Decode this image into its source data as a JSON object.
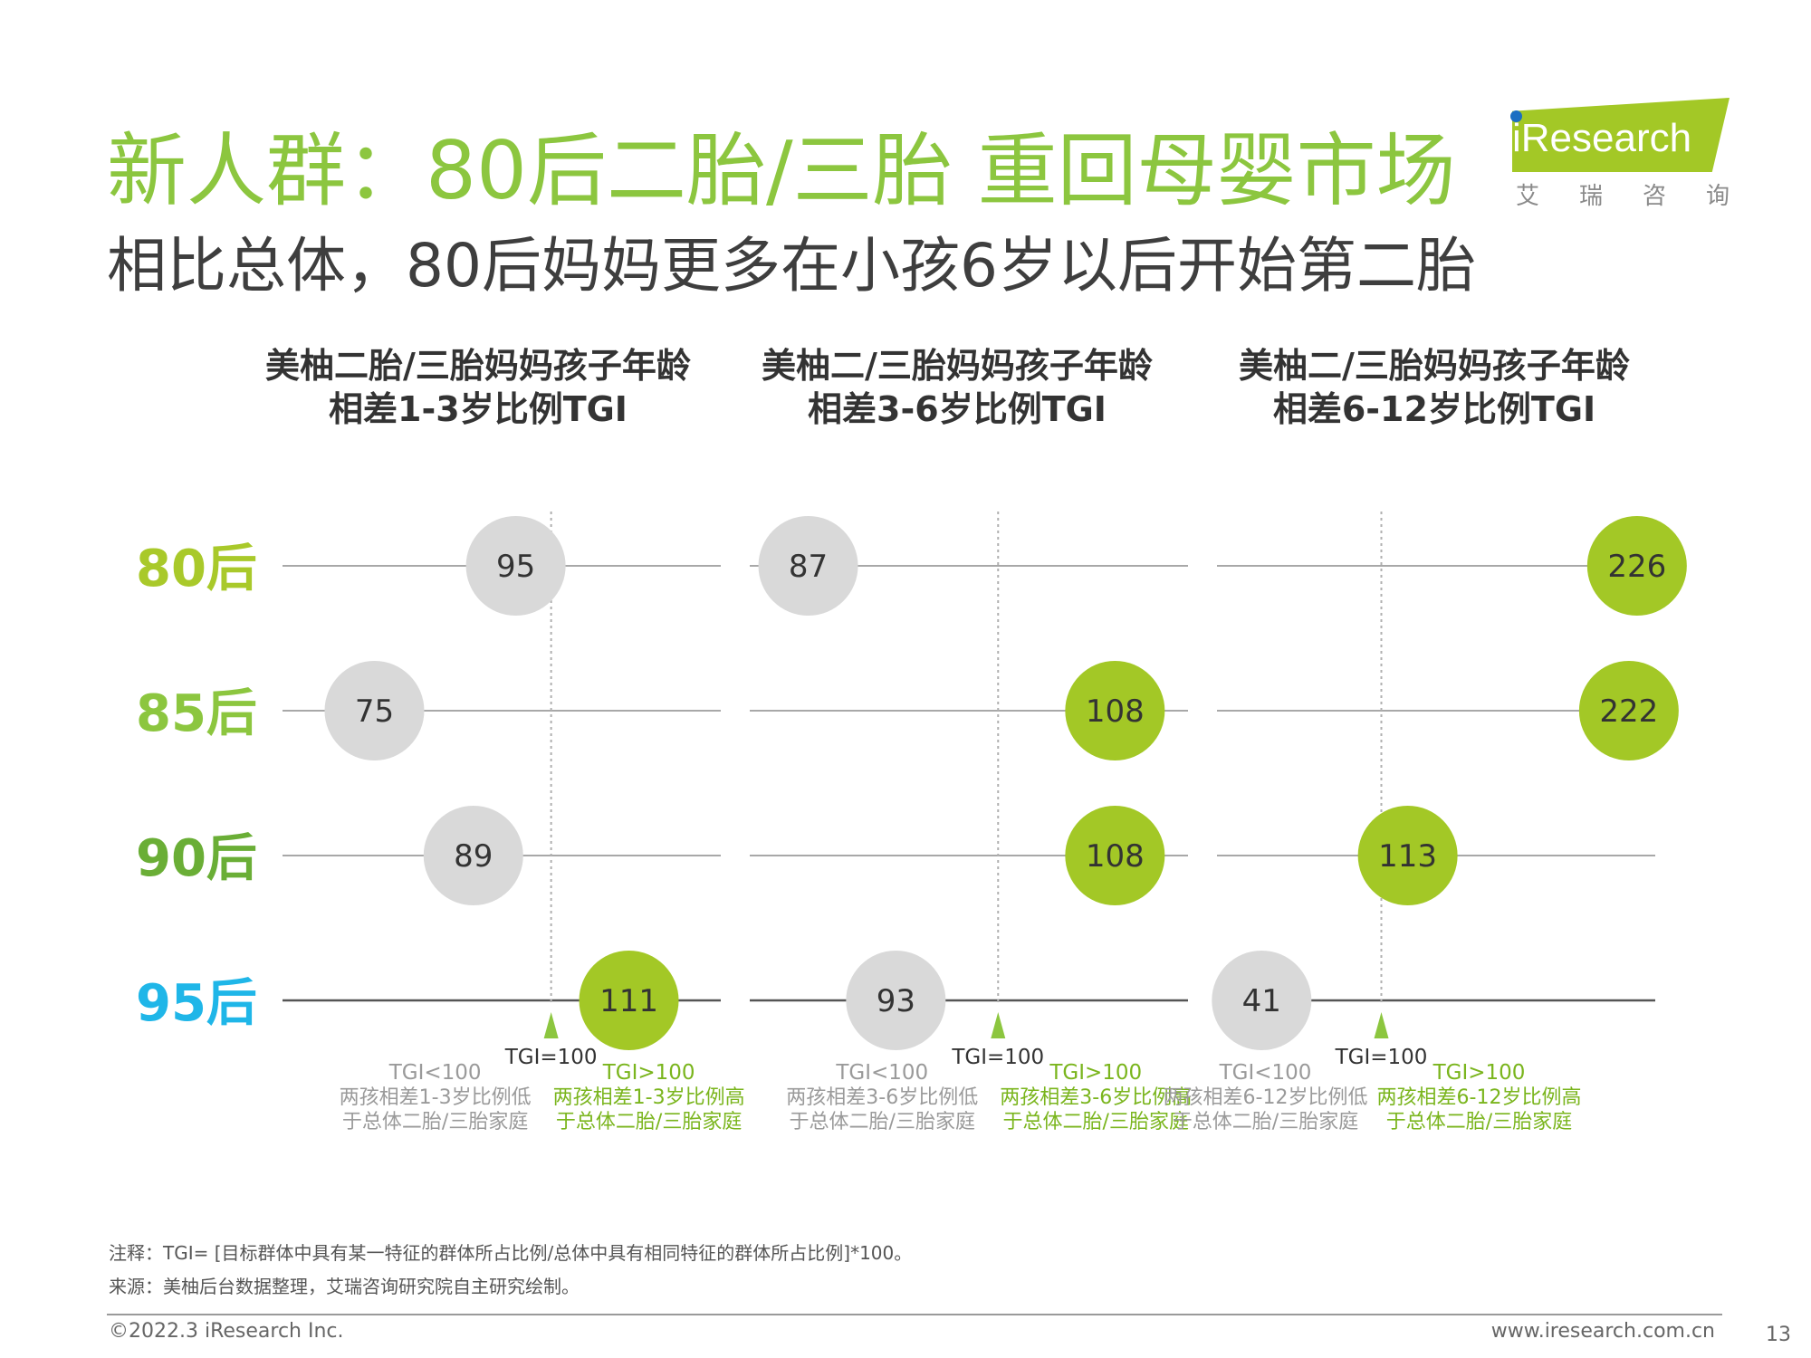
{
  "title": "新人群：80后二胎/三胎 重回母婴市场",
  "subtitle": "相比总体，80后妈妈更多在小孩6岁以后开始第二胎",
  "logo": {
    "wordmark": "iResearch",
    "cn": "艾瑞咨询",
    "colors": {
      "banner": "#a3c826",
      "dot": "#1b6fc2"
    }
  },
  "colors": {
    "above": "#a3c826",
    "below": "#d9d9d9",
    "title": "#8cc63f",
    "label_green": "#7ab51d"
  },
  "chart_data": {
    "type": "scatter",
    "reference_value": 100,
    "reference_label": "TGI=100",
    "rows": [
      {
        "label": "80后",
        "color": "#a9c92a"
      },
      {
        "label": "85后",
        "color": "#8cc63f"
      },
      {
        "label": "90后",
        "color": "#6aae36"
      },
      {
        "label": "95后",
        "color": "#1fb6e8"
      }
    ],
    "panels": [
      {
        "title_line1": "美柚二胎/三胎妈妈孩子年龄",
        "title_line2": "相差1-3岁比例TGI",
        "xlim": [
          62,
          124
        ],
        "values": [
          95,
          75,
          89,
          111
        ],
        "below_line1": "TGI<100",
        "below_line2": "两孩相差1-3岁比例低",
        "below_line3": "于总体二胎/三胎家庭",
        "above_line1": "TGI>100",
        "above_line2": "两孩相差1-3岁比例高",
        "above_line3": "于总体二胎/三胎家庭"
      },
      {
        "title_line1": "美柚二/三胎妈妈孩子年龄",
        "title_line2": "相差3-6岁比例TGI",
        "xlim": [
          83,
          113
        ],
        "values": [
          87,
          108,
          108,
          93
        ],
        "below_line1": "TGI<100",
        "below_line2": "两孩相差3-6岁比例低",
        "below_line3": "于总体二胎/三胎家庭",
        "above_line1": "TGI>100",
        "above_line2": "两孩相差3-6岁比例高",
        "above_line3": "于总体二胎/三胎家庭"
      },
      {
        "title_line1": "美柚二/三胎妈妈孩子年龄",
        "title_line2": "相差6-12岁比例TGI",
        "xlim": [
          19,
          235
        ],
        "values": [
          226,
          222,
          113,
          41
        ],
        "below_line1": "TGI<100",
        "below_line2": "两孩相差6-12岁比例低",
        "below_line3": "于总体二胎/三胎家庭",
        "above_line1": "TGI>100",
        "above_line2": "两孩相差6-12岁比例高",
        "above_line3": "于总体二胎/三胎家庭"
      }
    ]
  },
  "notes": {
    "note": "注释：TGI= [目标群体中具有某一特征的群体所占比例/总体中具有相同特征的群体所占比例]*100。",
    "source": "来源：美柚后台数据整理，艾瑞咨询研究院自主研究绘制。"
  },
  "footer": {
    "copyright": "©2022.3 iResearch Inc.",
    "url": "www.iresearch.com.cn",
    "page": "13"
  }
}
